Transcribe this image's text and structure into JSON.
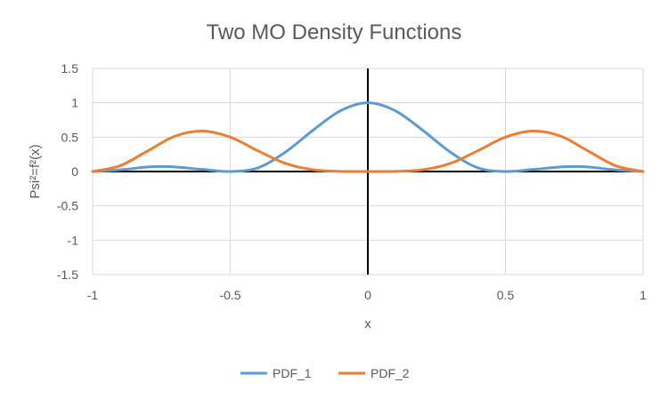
{
  "chart_data": {
    "type": "line",
    "title": "Two MO Density Functions",
    "xlabel": "x",
    "ylabel": "Psi²=f²(x)",
    "xlim": [
      -1,
      1
    ],
    "ylim": [
      -1.5,
      1.5
    ],
    "x_ticks": [
      "-1",
      "-0.5",
      "0",
      "0.5",
      "1"
    ],
    "y_ticks": [
      "1.5",
      "1",
      "0.5",
      "0",
      "-0.5",
      "-1",
      "-1.5"
    ],
    "grid": true,
    "legend_position": "bottom",
    "series": [
      {
        "name": "PDF_1",
        "color": "#5B9BD5",
        "x": [
          -1,
          -0.9,
          -0.8,
          -0.75,
          -0.7,
          -0.6,
          -0.5,
          -0.4,
          -0.3,
          -0.2,
          -0.1,
          0,
          0.1,
          0.2,
          0.3,
          0.4,
          0.5,
          0.6,
          0.7,
          0.75,
          0.8,
          0.9,
          1
        ],
        "y": [
          0,
          0.024,
          0.066,
          0.073,
          0.066,
          0.03,
          0,
          0.053,
          0.281,
          0.598,
          0.883,
          1,
          0.883,
          0.598,
          0.281,
          0.053,
          0,
          0.03,
          0.066,
          0.073,
          0.066,
          0.024,
          0
        ]
      },
      {
        "name": "PDF_2",
        "color": "#ED7D31",
        "x": [
          -1,
          -0.9,
          -0.8,
          -0.7,
          -0.6,
          -0.5,
          -0.4,
          -0.3,
          -0.2,
          -0.1,
          0,
          0.1,
          0.2,
          0.3,
          0.4,
          0.5,
          0.6,
          0.7,
          0.8,
          0.9,
          1
        ],
        "y": [
          0,
          0.085,
          0.299,
          0.516,
          0.588,
          0.5,
          0.303,
          0.119,
          0.026,
          0.002,
          0,
          0.002,
          0.026,
          0.119,
          0.303,
          0.5,
          0.588,
          0.516,
          0.299,
          0.085,
          0
        ]
      }
    ]
  }
}
